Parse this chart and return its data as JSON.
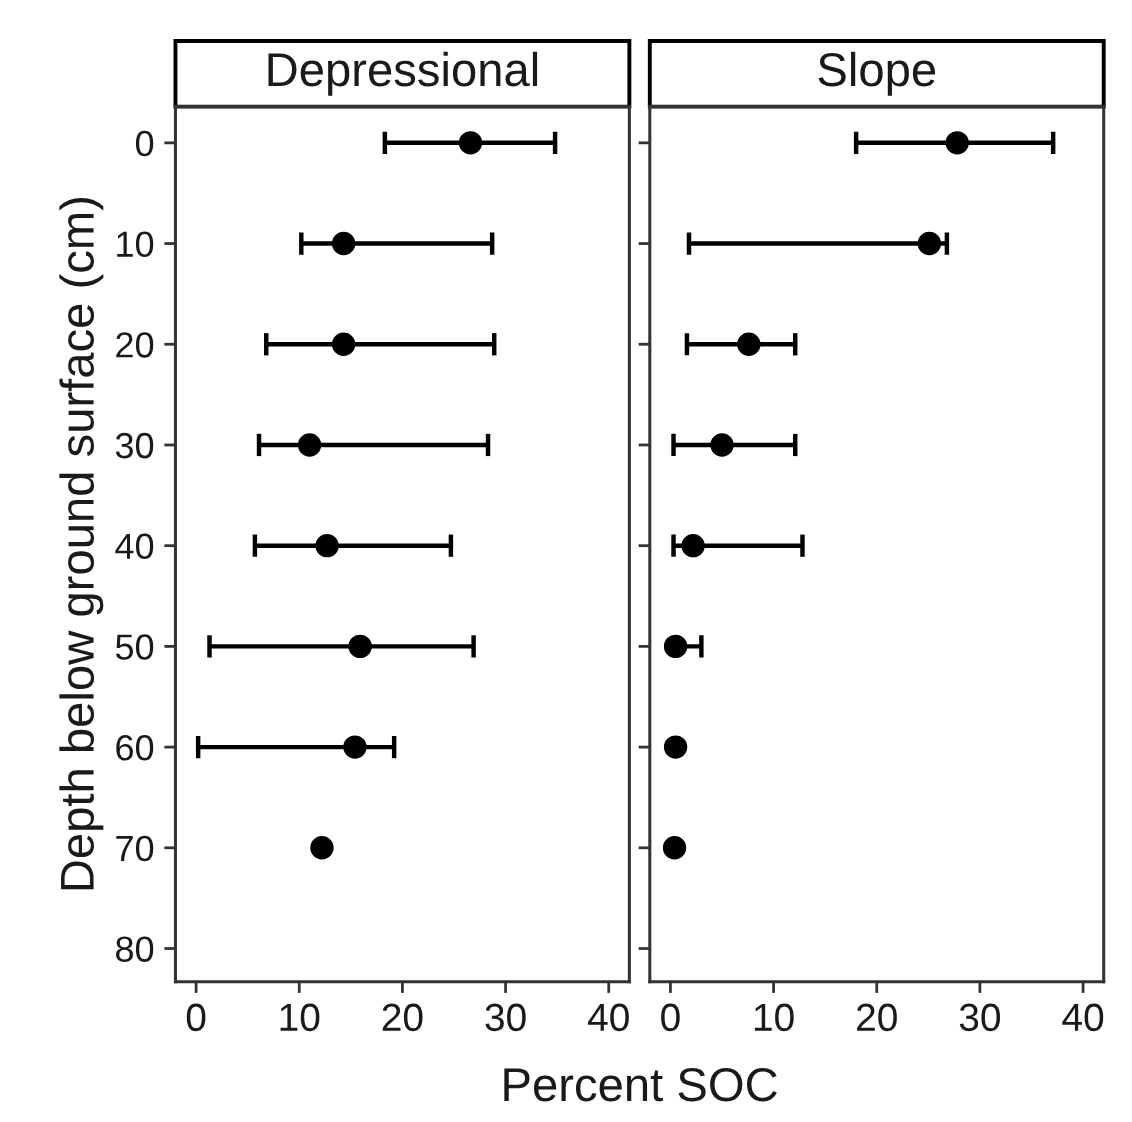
{
  "chart_data": [
    {
      "type": "scatter",
      "title": "Depressional",
      "xlabel": "Percent SOC",
      "ylabel": "Depth below ground surface (cm)",
      "marker": "circle",
      "grid": false,
      "series": [
        {
          "color": "#000000",
          "x": [
            26.6,
            14.3,
            14.3,
            11.0,
            12.7,
            15.9,
            15.4,
            12.2
          ],
          "values": [
            0,
            10,
            20,
            30,
            40,
            50,
            60,
            70
          ],
          "xerrors": [
            [
              18.3,
              34.8
            ],
            [
              10.2,
              28.7
            ],
            [
              6.8,
              28.9
            ],
            [
              6.1,
              28.3
            ],
            [
              5.7,
              24.7
            ],
            [
              1.3,
              26.9
            ],
            [
              0.2,
              19.2
            ],
            null
          ]
        }
      ],
      "xlim": [
        -2,
        42
      ],
      "xticks": [
        0,
        10,
        20,
        30,
        40
      ],
      "ylim": [
        83.3,
        -3.6
      ],
      "yticks": [
        0,
        10,
        20,
        30,
        40,
        50,
        60,
        70,
        80
      ]
    },
    {
      "type": "scatter",
      "title": "Slope",
      "marker": "circle",
      "grid": false,
      "tick_labels": "x",
      "series": [
        {
          "color": "#000000",
          "x": [
            27.8,
            25.1,
            7.6,
            5.0,
            2.2,
            0.5,
            0.5,
            0.4
          ],
          "values": [
            0,
            10,
            20,
            30,
            40,
            50,
            60,
            70
          ],
          "xerrors": [
            [
              18.0,
              37.1
            ],
            [
              1.8,
              26.8
            ],
            [
              1.6,
              12.1
            ],
            [
              0.3,
              12.1
            ],
            [
              0.3,
              12.8
            ],
            [
              0.5,
              3.0
            ],
            null,
            null
          ]
        }
      ],
      "xlim": [
        -2,
        42
      ],
      "xticks": [
        0,
        10,
        20,
        30,
        40
      ],
      "ylim": [
        83.3,
        -3.6
      ],
      "yticks": [
        0,
        10,
        20,
        30,
        40,
        50,
        60,
        70,
        80
      ]
    }
  ]
}
